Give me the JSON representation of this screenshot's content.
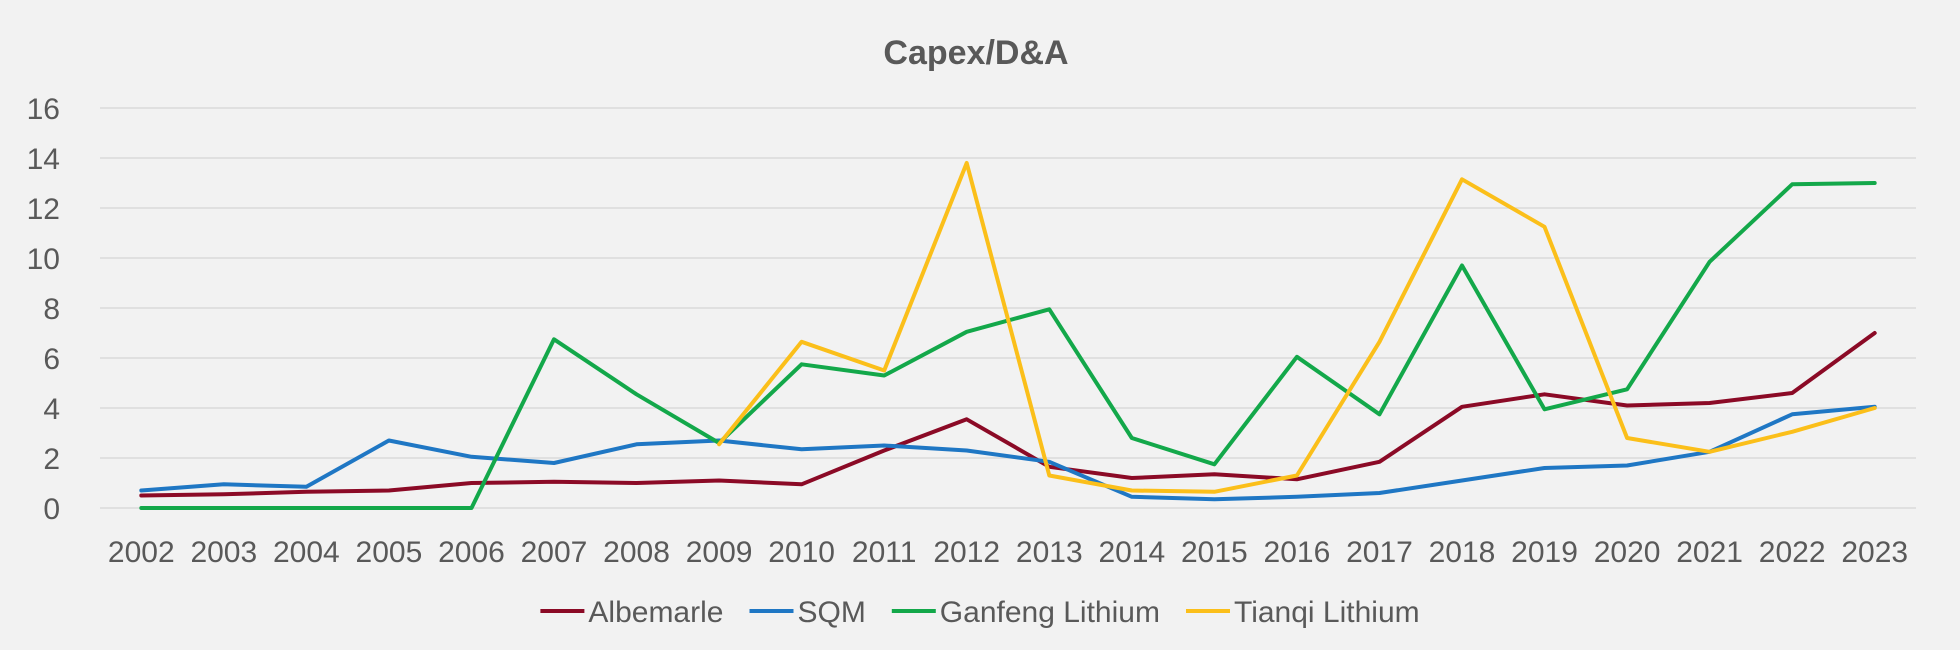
{
  "chart_data": {
    "type": "line",
    "title": "Capex/D&A",
    "xlabel": "",
    "ylabel": "",
    "ylim": [
      0,
      16
    ],
    "yticks": [
      0,
      2,
      4,
      6,
      8,
      10,
      12,
      14,
      16
    ],
    "grid": true,
    "legend_position": "bottom",
    "categories": [
      "2002",
      "2003",
      "2004",
      "2005",
      "2006",
      "2007",
      "2008",
      "2009",
      "2010",
      "2011",
      "2012",
      "2013",
      "2014",
      "2015",
      "2016",
      "2017",
      "2018",
      "2019",
      "2020",
      "2021",
      "2022",
      "2023"
    ],
    "series": [
      {
        "name": "Albemarle",
        "color": "#8b0a26",
        "values": [
          0.5,
          0.55,
          0.65,
          0.7,
          1.0,
          1.05,
          1.0,
          1.1,
          0.95,
          2.3,
          3.55,
          1.65,
          1.2,
          1.35,
          1.15,
          1.85,
          4.05,
          4.55,
          4.1,
          4.2,
          4.6,
          7.0
        ]
      },
      {
        "name": "SQM",
        "color": "#1f77c4",
        "values": [
          0.7,
          0.95,
          0.85,
          2.7,
          2.05,
          1.8,
          2.55,
          2.7,
          2.35,
          2.5,
          2.3,
          1.85,
          0.45,
          0.35,
          0.45,
          0.6,
          1.1,
          1.6,
          1.7,
          2.25,
          3.75,
          4.05
        ]
      },
      {
        "name": "Ganfeng Lithium",
        "color": "#13a84a",
        "values": [
          0,
          0,
          0,
          0,
          0,
          6.75,
          4.55,
          2.6,
          5.75,
          5.3,
          7.05,
          7.95,
          2.8,
          1.75,
          6.05,
          3.75,
          9.7,
          3.95,
          4.75,
          9.85,
          12.95,
          13.0
        ]
      },
      {
        "name": "Tianqi Lithium",
        "color": "#fbbf1a",
        "values": [
          null,
          null,
          null,
          null,
          null,
          null,
          null,
          2.55,
          6.65,
          5.5,
          13.8,
          1.3,
          0.7,
          0.65,
          1.3,
          6.65,
          13.15,
          11.25,
          2.8,
          2.25,
          3.05,
          4.0
        ]
      }
    ]
  }
}
